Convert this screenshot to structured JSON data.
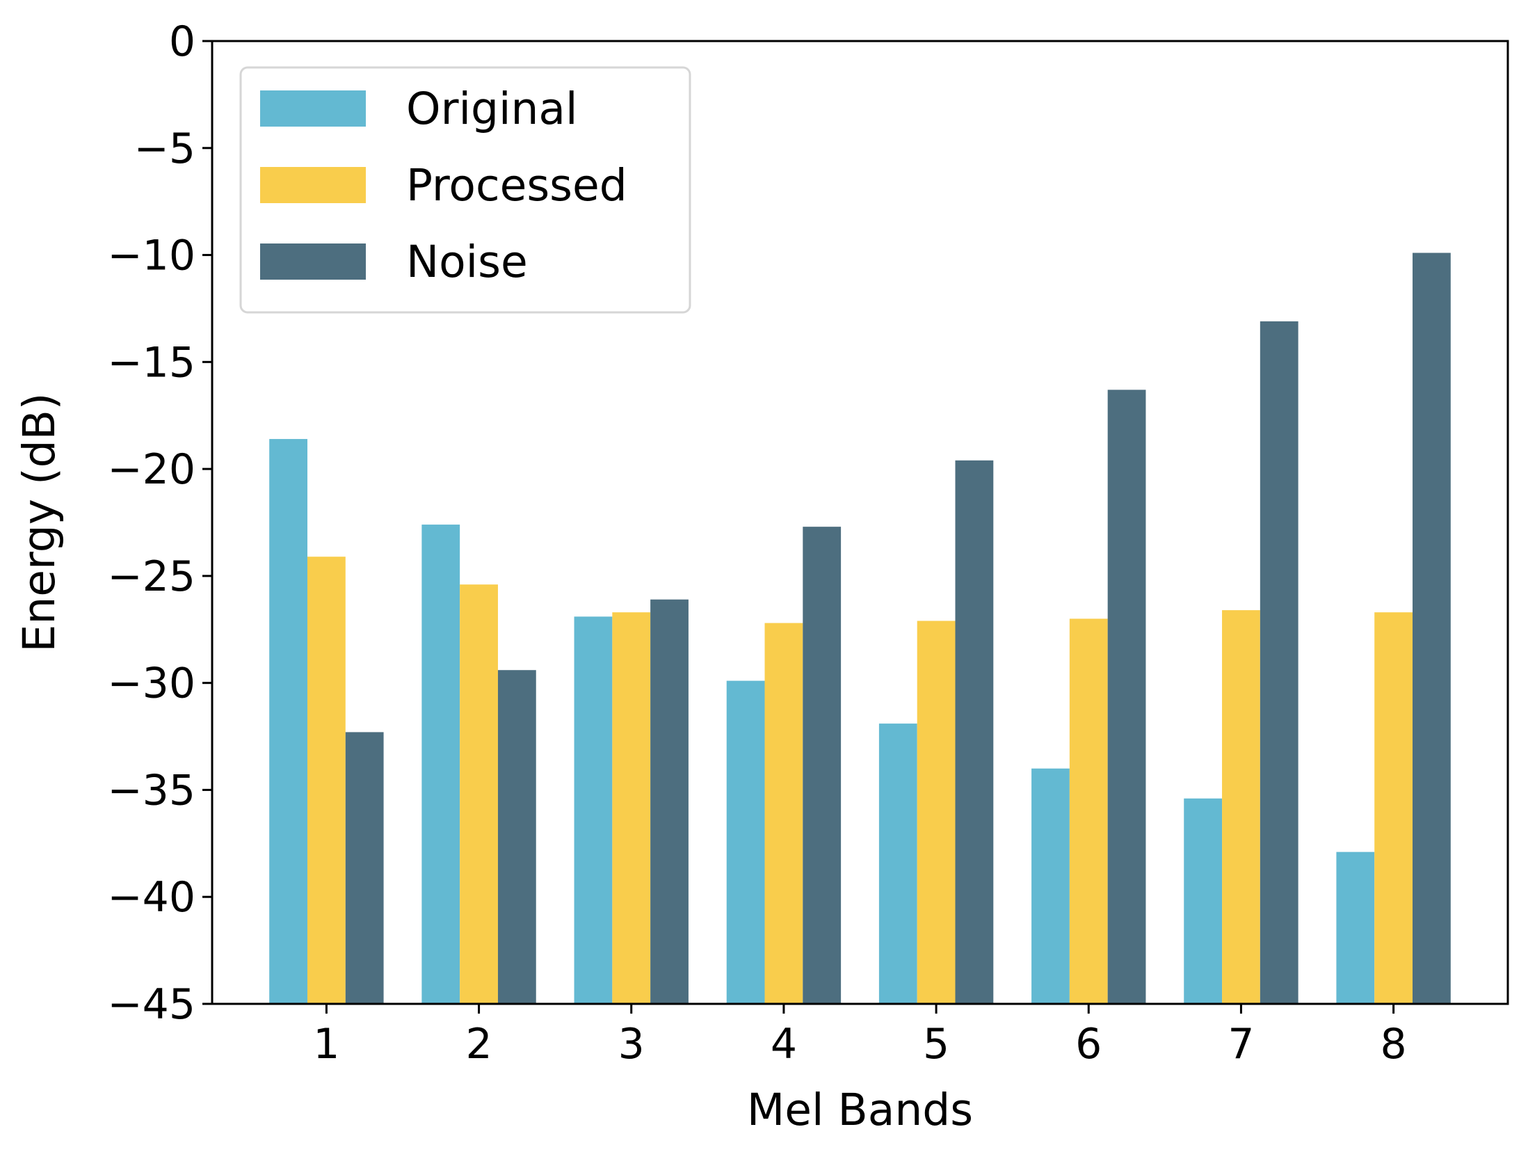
{
  "chart_data": {
    "type": "bar",
    "title": "",
    "xlabel": "Mel Bands",
    "ylabel": "Energy (dB)",
    "categories": [
      "1",
      "2",
      "3",
      "4",
      "5",
      "6",
      "7",
      "8"
    ],
    "ylim": [
      -45,
      0
    ],
    "yticks": [
      0,
      -5,
      -10,
      -15,
      -20,
      -25,
      -30,
      -35,
      -40,
      -45
    ],
    "ytick_labels": [
      "0",
      "−5",
      "−10",
      "−15",
      "−20",
      "−25",
      "−30",
      "−35",
      "−40",
      "−45"
    ],
    "grid": false,
    "legend_position": "top-left",
    "series": [
      {
        "name": "Original",
        "color": "#63b9d2",
        "values": [
          -18.6,
          -22.6,
          -26.9,
          -29.9,
          -31.9,
          -34.0,
          -35.4,
          -37.9
        ]
      },
      {
        "name": "Processed",
        "color": "#f9cd4c",
        "values": [
          -24.1,
          -25.4,
          -26.7,
          -27.2,
          -27.1,
          -27.0,
          -26.6,
          -26.7
        ]
      },
      {
        "name": "Noise",
        "color": "#4d6e7f",
        "values": [
          -32.3,
          -29.4,
          -26.1,
          -22.7,
          -19.6,
          -16.3,
          -13.1,
          -9.9
        ]
      }
    ]
  }
}
